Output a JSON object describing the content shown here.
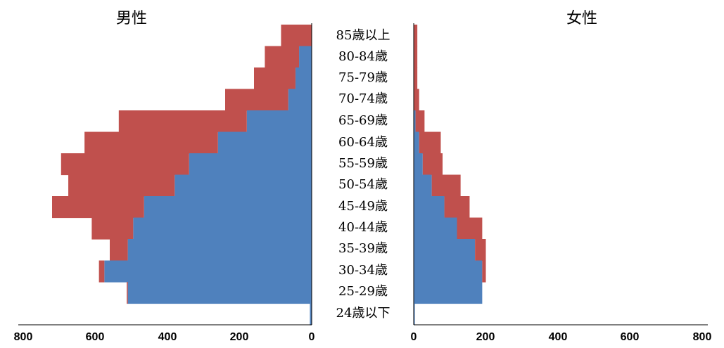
{
  "chart_data": {
    "type": "bar",
    "subtype": "population-pyramid (stacked horizontal bars, stepped)",
    "panels": [
      {
        "title": "男性",
        "side": "left"
      },
      {
        "title": "女性",
        "side": "right"
      }
    ],
    "categories": [
      "85歳以上",
      "80-84歳",
      "75-79歳",
      "70-74歳",
      "65-69歳",
      "60-64歳",
      "55-59歳",
      "50-54歳",
      "45-49歳",
      "40-44歳",
      "35-39歳",
      "30-34歳",
      "25-29歳",
      "24歳以下"
    ],
    "series": [
      {
        "color": "#4f81bd",
        "male": [
          0,
          35,
          45,
          65,
          180,
          260,
          340,
          380,
          465,
          495,
          510,
          575,
          510,
          5
        ],
        "female": [
          0,
          0,
          0,
          0,
          5,
          15,
          25,
          50,
          85,
          120,
          170,
          190,
          190,
          3
        ]
      },
      {
        "color": "#c0504d",
        "male": [
          85,
          95,
          115,
          175,
          355,
          370,
          355,
          295,
          255,
          115,
          50,
          15,
          3,
          0
        ],
        "female": [
          10,
          10,
          10,
          15,
          25,
          60,
          55,
          80,
          70,
          70,
          30,
          10,
          0,
          0
        ]
      }
    ],
    "x_ticks": [
      "800",
      "600",
      "400",
      "200",
      "0"
    ],
    "xlim": [
      0,
      800
    ],
    "grid": false,
    "legend": "none"
  }
}
